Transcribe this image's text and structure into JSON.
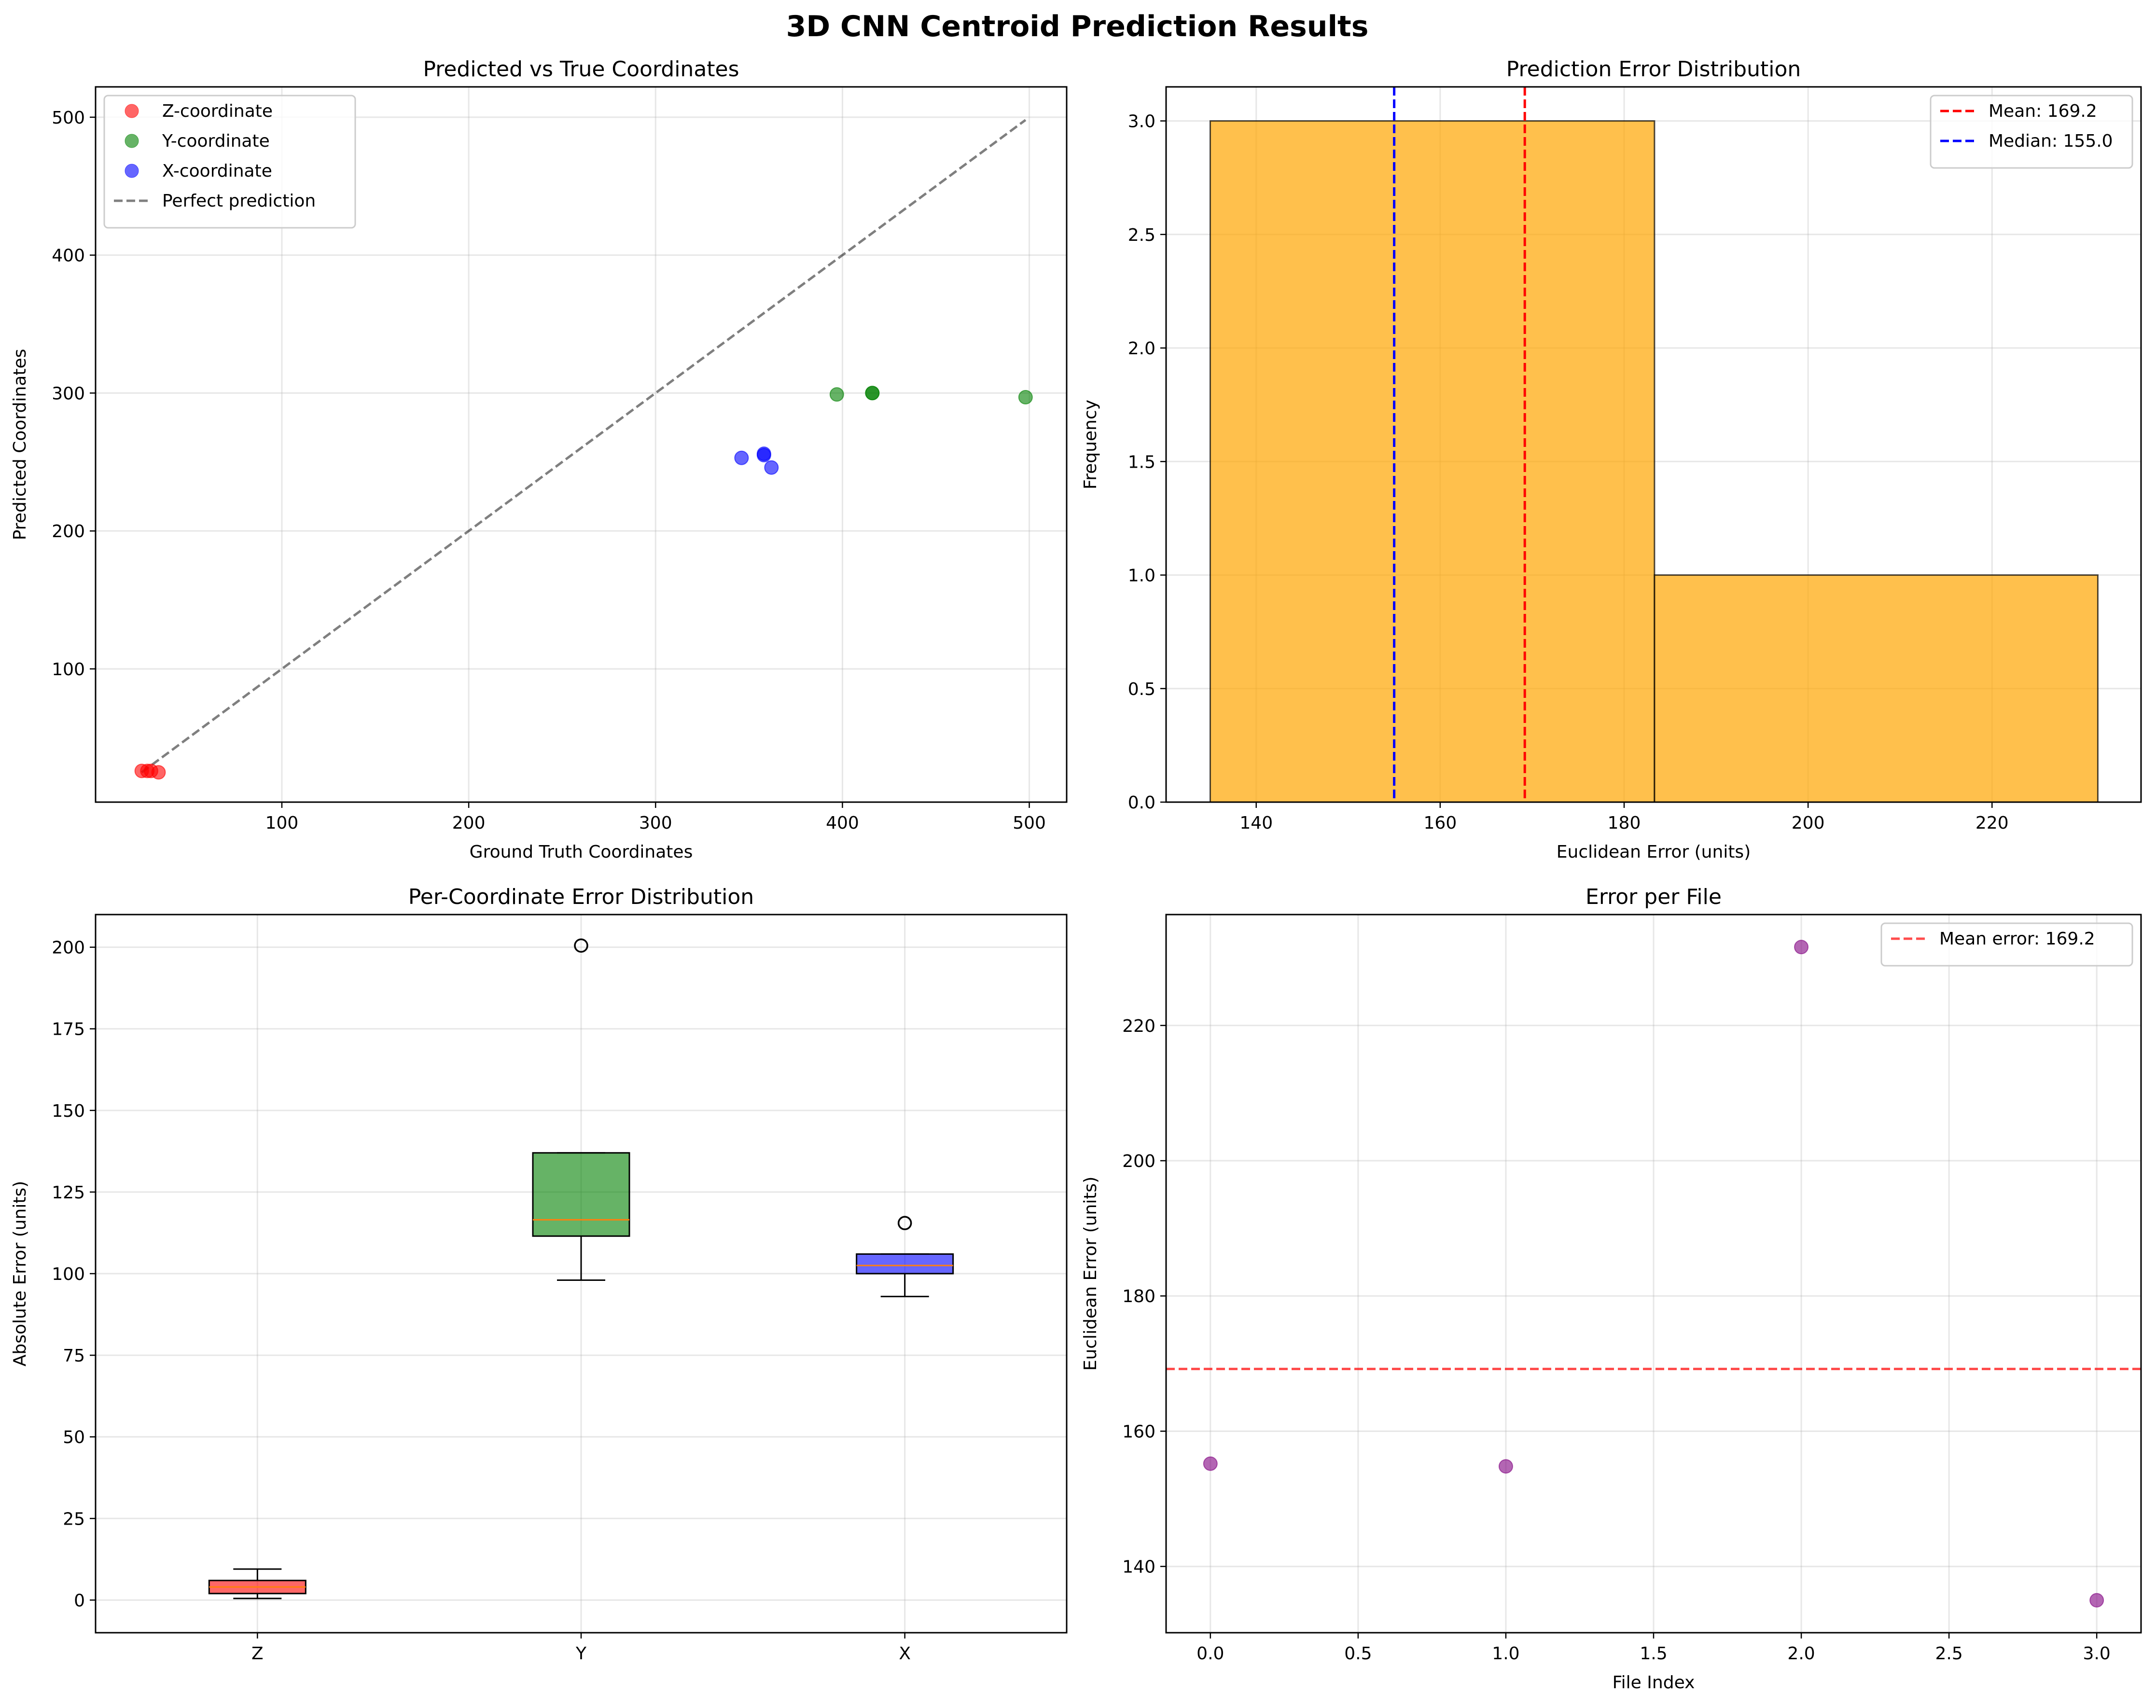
{
  "suptitle": "3D CNN Centroid Prediction Results",
  "chart_data": [
    {
      "type": "scatter",
      "title": "Predicted vs True Coordinates",
      "xlabel": "Ground Truth Coordinates",
      "ylabel": "Predicted Coordinates",
      "xlim": [
        0.3,
        520
      ],
      "ylim": [
        3.4,
        522
      ],
      "xticks": [
        100,
        200,
        300,
        400,
        500
      ],
      "yticks": [
        100,
        200,
        300,
        400,
        500
      ],
      "grid": true,
      "legend_position": "upper-left",
      "series": [
        {
          "name": "Z-coordinate",
          "color": "#ff0000",
          "points": [
            [
              25,
              26
            ],
            [
              28,
              26
            ],
            [
              30,
              26
            ],
            [
              34,
              25
            ]
          ]
        },
        {
          "name": "Y-coordinate",
          "color": "#008000",
          "points": [
            [
              397,
              299
            ],
            [
              416,
              300
            ],
            [
              416,
              300
            ],
            [
              498,
              297
            ]
          ]
        },
        {
          "name": "X-coordinate",
          "color": "#0000ff",
          "points": [
            [
              346,
              253
            ],
            [
              358,
              256
            ],
            [
              358,
              255
            ],
            [
              362,
              246
            ]
          ]
        }
      ],
      "reference_line": {
        "name": "Perfect prediction",
        "color": "#808080",
        "from": [
          25,
          25
        ],
        "to": [
          498,
          498
        ]
      }
    },
    {
      "type": "bar",
      "title": "Prediction Error Distribution",
      "xlabel": "Euclidean Error (units)",
      "ylabel": "Frequency",
      "xlim": [
        130.2,
        236.2
      ],
      "ylim": [
        0,
        3.15
      ],
      "xticks": [
        140,
        160,
        180,
        200,
        220
      ],
      "yticks": [
        "0.0",
        "0.5",
        "1.0",
        "1.5",
        "2.0",
        "2.5",
        "3.0"
      ],
      "grid": true,
      "legend_position": "upper-right",
      "bar_color": "#ffa500",
      "bins": [
        {
          "from": 135.0,
          "to": 183.3,
          "count": 3
        },
        {
          "from": 183.3,
          "to": 231.5,
          "count": 1
        }
      ],
      "vlines": [
        {
          "name": "Mean: 169.2",
          "x": 169.2,
          "color": "#ff0000"
        },
        {
          "name": "Median: 155.0",
          "x": 155.0,
          "color": "#0000ff"
        }
      ]
    },
    {
      "type": "box",
      "title": "Per-Coordinate Error Distribution",
      "xlabel": "",
      "ylabel": "Absolute Error (units)",
      "ylim": [
        -10,
        210
      ],
      "yticks": [
        0,
        25,
        50,
        75,
        100,
        125,
        150,
        175,
        200
      ],
      "categories": [
        "Z",
        "Y",
        "X"
      ],
      "grid": true,
      "boxes": [
        {
          "label": "Z",
          "color": "#ff0000",
          "whisker_low": 0.5,
          "q1": 2,
          "median": 4,
          "q3": 6,
          "whisker_high": 9.5,
          "outliers": []
        },
        {
          "label": "Y",
          "color": "#008000",
          "whisker_low": 98,
          "q1": 111.5,
          "median": 116.5,
          "q3": 137,
          "whisker_high": 137,
          "outliers": [
            200.5
          ]
        },
        {
          "label": "X",
          "color": "#0000ff",
          "whisker_low": 93,
          "q1": 100,
          "median": 102.5,
          "q3": 106,
          "whisker_high": 106,
          "outliers": [
            115.5
          ]
        }
      ]
    },
    {
      "type": "scatter",
      "title": "Error per File",
      "xlabel": "File Index",
      "ylabel": "Euclidean Error (units)",
      "xlim": [
        -0.15,
        3.15
      ],
      "ylim": [
        130.2,
        236.4
      ],
      "xticks": [
        "0.0",
        "0.5",
        "1.0",
        "1.5",
        "2.0",
        "2.5",
        "3.0"
      ],
      "yticks": [
        140,
        160,
        180,
        200,
        220
      ],
      "grid": true,
      "legend_position": "upper-right",
      "color": "#800080",
      "points": [
        [
          0,
          155.2
        ],
        [
          1,
          154.8
        ],
        [
          2,
          231.6
        ],
        [
          3,
          135.0
        ]
      ],
      "hline": {
        "name": "Mean error: 169.2",
        "y": 169.2,
        "color": "#ff0000"
      }
    }
  ]
}
